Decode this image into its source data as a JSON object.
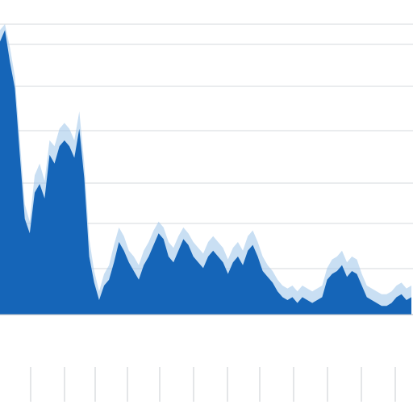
{
  "chart_data": {
    "type": "area",
    "title": "",
    "xlabel": "",
    "ylabel": "",
    "grid": true,
    "colors": {
      "fill_main": "#1565b8",
      "fill_light": "#9cc4ea",
      "grid": "#d5d9de",
      "background": "#ffffff"
    },
    "ylim": [
      0,
      100
    ],
    "series": [
      {
        "values": [
          94,
          98,
          87,
          78,
          55,
          33,
          28,
          42,
          45,
          40,
          55,
          52,
          58,
          60,
          58,
          54,
          64,
          47,
          20,
          11,
          5,
          10,
          12,
          18,
          25,
          22,
          18,
          15,
          12,
          17,
          20,
          24,
          28,
          26,
          20,
          18,
          22,
          26,
          24,
          20,
          18,
          16,
          20,
          22,
          20,
          18,
          14,
          18,
          20,
          17,
          22,
          24,
          20,
          15,
          13,
          11,
          8,
          6,
          5,
          6,
          4,
          6,
          5,
          4,
          5,
          6,
          12,
          14,
          15,
          17,
          13,
          15,
          14,
          10,
          6,
          5,
          4,
          3,
          3,
          4,
          6,
          7,
          5,
          6
        ]
      },
      {
        "values": [
          98,
          100,
          92,
          82,
          60,
          38,
          32,
          48,
          52,
          46,
          60,
          58,
          64,
          66,
          64,
          60,
          70,
          52,
          26,
          15,
          8,
          14,
          17,
          24,
          30,
          27,
          22,
          20,
          17,
          22,
          25,
          29,
          32,
          30,
          25,
          23,
          27,
          30,
          28,
          25,
          23,
          21,
          25,
          27,
          25,
          23,
          19,
          23,
          25,
          22,
          27,
          29,
          25,
          20,
          17,
          15,
          12,
          10,
          9,
          10,
          8,
          10,
          9,
          8,
          9,
          10,
          16,
          19,
          20,
          22,
          18,
          20,
          19,
          14,
          10,
          9,
          8,
          7,
          7,
          8,
          10,
          11,
          9,
          10
        ]
      }
    ]
  }
}
